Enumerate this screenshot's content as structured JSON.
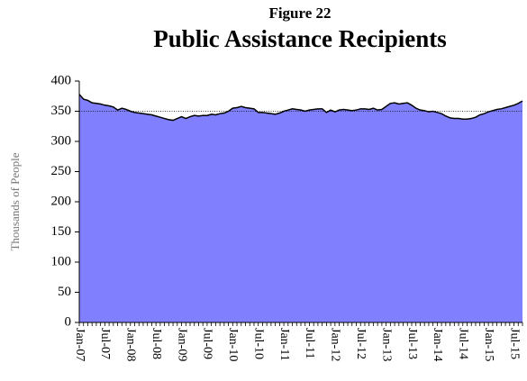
{
  "chart_data": {
    "type": "area",
    "figure_label": "Figure 22",
    "title": "Public Assistance Recipients",
    "y_label": "Thousands of People",
    "color": "#8080ff",
    "line_color": "#000000",
    "reference_line": 350,
    "ylim": [
      0,
      400
    ],
    "yticks": [
      0,
      50,
      100,
      150,
      200,
      250,
      300,
      350,
      400
    ],
    "categories": [
      "Jan-07",
      null,
      null,
      null,
      null,
      null,
      "Jul-07",
      null,
      null,
      null,
      null,
      null,
      "Jan-08",
      null,
      null,
      null,
      null,
      null,
      "Jul-08",
      null,
      null,
      null,
      null,
      null,
      "Jan-09",
      null,
      null,
      null,
      null,
      null,
      "Jul-09",
      null,
      null,
      null,
      null,
      null,
      "Jan-10",
      null,
      null,
      null,
      null,
      null,
      "Jul-10",
      null,
      null,
      null,
      null,
      null,
      "Jan-11",
      null,
      null,
      null,
      null,
      null,
      "Jul-11",
      null,
      null,
      null,
      null,
      null,
      "Jan-12",
      null,
      null,
      null,
      null,
      null,
      "Jul-12",
      null,
      null,
      null,
      null,
      null,
      "Jan-13",
      null,
      null,
      null,
      null,
      null,
      "Jul-13",
      null,
      null,
      null,
      null,
      null,
      "Jan-14",
      null,
      null,
      null,
      null,
      null,
      "Jul-14",
      null,
      null,
      null,
      null,
      null,
      "Jan-15",
      null,
      null,
      null,
      null,
      null,
      "Jul-15",
      null,
      null
    ],
    "values": [
      378,
      370,
      368,
      364,
      363,
      362,
      360,
      359,
      357,
      352,
      355,
      353,
      350,
      348,
      347,
      346,
      345,
      344,
      342,
      340,
      338,
      336,
      335,
      338,
      341,
      338,
      341,
      343,
      342,
      343,
      343,
      345,
      344,
      346,
      347,
      350,
      355,
      356,
      358,
      356,
      355,
      354,
      348,
      348,
      347,
      346,
      345,
      347,
      350,
      352,
      354,
      353,
      352,
      350,
      352,
      353,
      354,
      354,
      348,
      352,
      349,
      352,
      353,
      352,
      351,
      352,
      354,
      354,
      353,
      355,
      352,
      353,
      358,
      363,
      364,
      362,
      363,
      364,
      360,
      355,
      352,
      351,
      349,
      350,
      348,
      346,
      342,
      339,
      338,
      338,
      337,
      337,
      338,
      340,
      344,
      346,
      349,
      351,
      353,
      354,
      356,
      358,
      360,
      363,
      367
    ]
  }
}
